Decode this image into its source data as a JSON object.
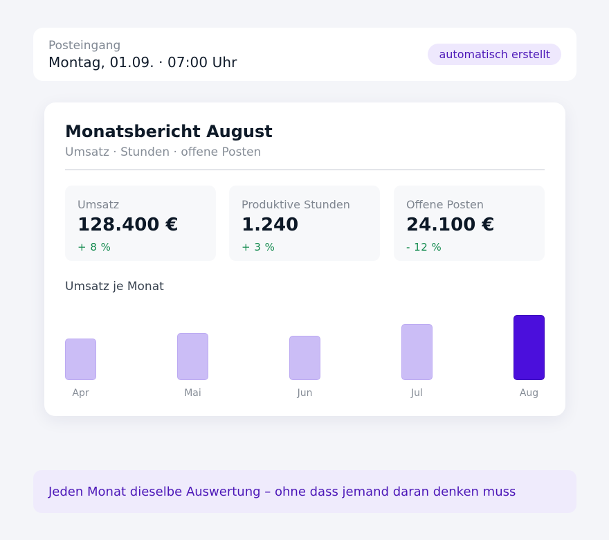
{
  "inbox": {
    "label": "Posteingang",
    "date": "Montag, 01.09.  ·  07:00 Uhr",
    "badge": "automatisch erstellt"
  },
  "report": {
    "title": "Monatsbericht August",
    "subtitle": "Umsatz · Stunden · offene Posten",
    "kpis": [
      {
        "label": "Umsatz",
        "value": "128.400 €",
        "delta": "+ 8 %"
      },
      {
        "label": "Produktive Stunden",
        "value": "1.240",
        "delta": "+ 3 %"
      },
      {
        "label": "Offene Posten",
        "value": "24.100 €",
        "delta": "- 12 %"
      }
    ]
  },
  "chart_data": {
    "type": "bar",
    "title": "Umsatz je Monat",
    "categories": [
      "Apr",
      "Mai",
      "Jun",
      "Jul",
      "Aug"
    ],
    "values": [
      0.64,
      0.72,
      0.68,
      0.86,
      1.0
    ],
    "highlight": "Aug",
    "colors": {
      "bar": "#cbbdf6",
      "highlight": "#4b0fdc"
    }
  },
  "footer": {
    "text": "Jeden Monat dieselbe Auswertung – ohne dass jemand daran denken muss"
  }
}
